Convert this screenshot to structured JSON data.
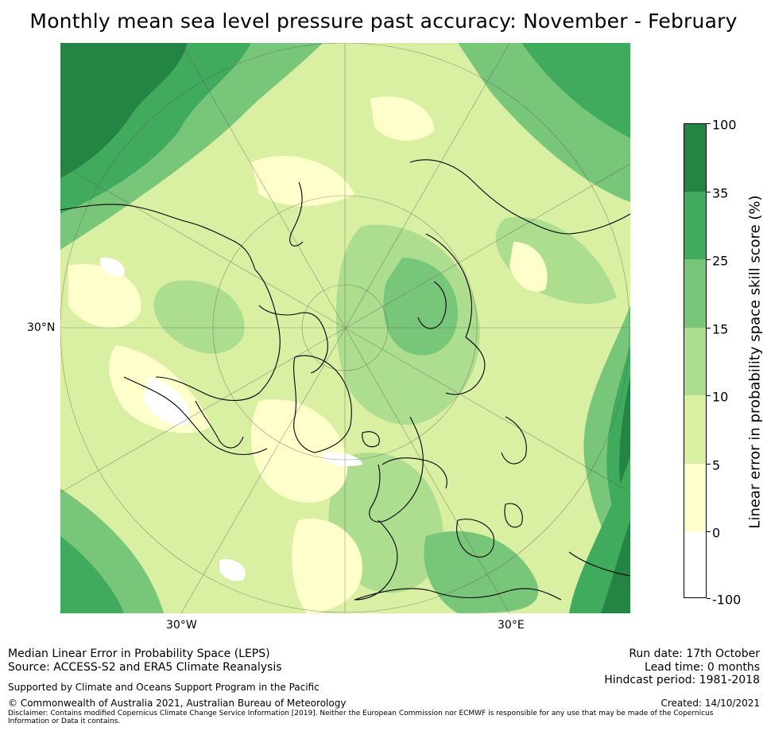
{
  "title": "Monthly mean sea level pressure past accuracy: November - February",
  "map": {
    "projection": "north-polar-stereographic",
    "lat_label": "30°N",
    "lon_labels": [
      "30°W",
      "30°E"
    ],
    "colors": {
      "c0": "#ffffff",
      "c5": "#ffffcc",
      "c10": "#d9f0a3",
      "c15": "#addd8e",
      "c25": "#78c679",
      "c35": "#41ab5d",
      "c100": "#238443"
    }
  },
  "colorbar": {
    "title": "Linear error in probability space skill score (%)",
    "ticks": [
      "100",
      "35",
      "25",
      "15",
      "10",
      "5",
      "0",
      "-100"
    ],
    "bins": [
      {
        "from": "35",
        "to": "100",
        "color": "#238443"
      },
      {
        "from": "25",
        "to": "35",
        "color": "#41ab5d"
      },
      {
        "from": "15",
        "to": "25",
        "color": "#78c679"
      },
      {
        "from": "10",
        "to": "15",
        "color": "#addd8e"
      },
      {
        "from": "5",
        "to": "10",
        "color": "#d9f0a3"
      },
      {
        "from": "0",
        "to": "5",
        "color": "#ffffcc"
      },
      {
        "from": "-100",
        "to": "0",
        "color": "#ffffff"
      }
    ]
  },
  "footer": {
    "method": "Median Linear Error in Probability Space (LEPS)",
    "source": "Source: ACCESS-S2 and ERA5 Climate Reanalysis",
    "support": "Supported by Climate and Oceans Support Program in the Pacific",
    "copyright": "© Commonwealth of Australia 2021, Australian Bureau of Meteorology",
    "disclaimer": "Disclaimer: Contains modified Copernicus Climate Change Service Information [2019]. Neither the European Commission nor ECMWF is responsible for any use that may be made of the Copernicus Information or Data it contains.",
    "run_date": "Run date: 17th October",
    "lead_time": "Lead time: 0 months",
    "hindcast": "Hindcast period: 1981-2018",
    "created": "Created: 14/10/2021"
  }
}
